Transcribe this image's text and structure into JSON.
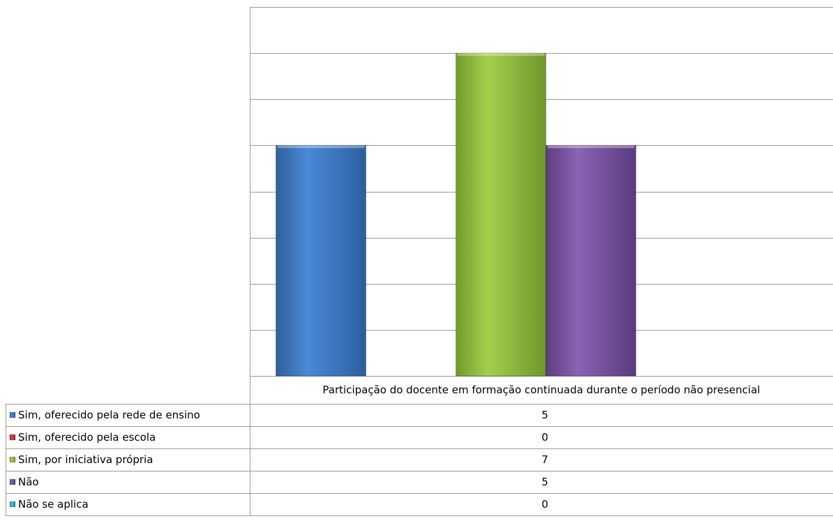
{
  "chart_data": {
    "type": "bar",
    "categories": [
      "Participação do docente em formação continuada durante o período não presencial"
    ],
    "series": [
      {
        "name": "Sim, oferecido pela rede de ensino",
        "values": [
          5
        ],
        "color": "#3a7bcc"
      },
      {
        "name": "Sim, oferecido pela escola",
        "values": [
          0
        ],
        "color": "#c0393b"
      },
      {
        "name": "Sim, por iniciativa própria",
        "values": [
          7
        ],
        "color": "#8cbc3a"
      },
      {
        "name": "Não",
        "values": [
          5
        ],
        "color": "#7b53a3"
      },
      {
        "name": "Não se aplica",
        "values": [
          0
        ],
        "color": "#2bb5c8"
      }
    ],
    "ylim": [
      0,
      8
    ],
    "grid": true,
    "legend": "data-table-left",
    "data_table": true
  }
}
